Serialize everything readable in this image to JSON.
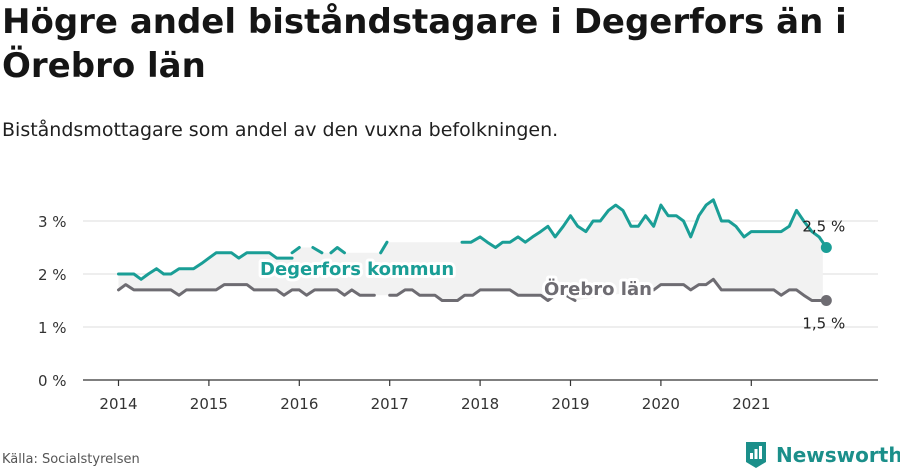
{
  "title": "Högre andel biståndstagare i Degerfors än i Örebro län",
  "subtitle": "Biståndsmottagare som andel av den vuxna befolkningen.",
  "source": "Källa: Socialstyrelsen",
  "brand": {
    "name": "Newsworthy",
    "icon": "newsworthy-logo-icon"
  },
  "colors": {
    "teal": "#1a9e96",
    "gray": "#6e6c72",
    "band": "#f2f2f2",
    "grid": "#dddddd",
    "axis": "#333333"
  },
  "chart_data": {
    "type": "line",
    "ylim": [
      0,
      3.4
    ],
    "xlim": [
      2013.6,
      2022.4
    ],
    "yticks": [
      {
        "value": 0,
        "label": "0 %"
      },
      {
        "value": 1,
        "label": "1 %"
      },
      {
        "value": 2,
        "label": "2 %"
      },
      {
        "value": 3,
        "label": "3 %"
      }
    ],
    "xticks": [
      "2014",
      "2015",
      "2016",
      "2017",
      "2018",
      "2019",
      "2020",
      "2021"
    ],
    "grid": true,
    "series": [
      {
        "name": "Degerfors kommun",
        "color": "#1a9e96",
        "end_label": "2,5 %",
        "segments": [
          [
            [
              2014.0,
              2.0
            ],
            [
              2014.08,
              2.0
            ],
            [
              2014.17,
              2.0
            ],
            [
              2014.25,
              1.9
            ],
            [
              2014.33,
              2.0
            ],
            [
              2014.42,
              2.1
            ],
            [
              2014.5,
              2.0
            ],
            [
              2014.58,
              2.0
            ],
            [
              2014.67,
              2.1
            ],
            [
              2014.75,
              2.1
            ],
            [
              2014.83,
              2.1
            ],
            [
              2014.92,
              2.2
            ],
            [
              2015.0,
              2.3
            ],
            [
              2015.08,
              2.4
            ],
            [
              2015.17,
              2.4
            ],
            [
              2015.25,
              2.4
            ],
            [
              2015.33,
              2.3
            ],
            [
              2015.42,
              2.4
            ],
            [
              2015.5,
              2.4
            ],
            [
              2015.58,
              2.4
            ],
            [
              2015.67,
              2.4
            ],
            [
              2015.75,
              2.3
            ],
            [
              2015.83,
              2.3
            ],
            [
              2015.92,
              2.3
            ]
          ],
          [
            [
              2015.92,
              2.4
            ],
            [
              2016.0,
              2.5
            ]
          ],
          [
            [
              2016.15,
              2.5
            ],
            [
              2016.25,
              2.4
            ]
          ],
          [
            [
              2016.35,
              2.4
            ],
            [
              2016.42,
              2.5
            ],
            [
              2016.5,
              2.4
            ]
          ],
          [
            [
              2016.9,
              2.4
            ],
            [
              2016.97,
              2.6
            ]
          ],
          [
            [
              2017.8,
              2.6
            ],
            [
              2017.9,
              2.6
            ],
            [
              2018.0,
              2.7
            ],
            [
              2018.08,
              2.6
            ],
            [
              2018.17,
              2.5
            ],
            [
              2018.25,
              2.6
            ],
            [
              2018.33,
              2.6
            ],
            [
              2018.42,
              2.7
            ],
            [
              2018.5,
              2.6
            ],
            [
              2018.58,
              2.7
            ],
            [
              2018.67,
              2.8
            ],
            [
              2018.75,
              2.9
            ],
            [
              2018.83,
              2.7
            ],
            [
              2018.92,
              2.9
            ],
            [
              2019.0,
              3.1
            ],
            [
              2019.08,
              2.9
            ],
            [
              2019.17,
              2.8
            ],
            [
              2019.25,
              3.0
            ],
            [
              2019.33,
              3.0
            ],
            [
              2019.42,
              3.2
            ],
            [
              2019.5,
              3.3
            ],
            [
              2019.58,
              3.2
            ],
            [
              2019.67,
              2.9
            ],
            [
              2019.75,
              2.9
            ],
            [
              2019.83,
              3.1
            ],
            [
              2019.92,
              2.9
            ],
            [
              2020.0,
              3.3
            ],
            [
              2020.08,
              3.1
            ],
            [
              2020.17,
              3.1
            ],
            [
              2020.25,
              3.0
            ],
            [
              2020.33,
              2.7
            ],
            [
              2020.42,
              3.1
            ],
            [
              2020.5,
              3.3
            ],
            [
              2020.58,
              3.4
            ],
            [
              2020.67,
              3.0
            ],
            [
              2020.75,
              3.0
            ],
            [
              2020.83,
              2.9
            ],
            [
              2020.92,
              2.7
            ],
            [
              2021.0,
              2.8
            ],
            [
              2021.08,
              2.8
            ],
            [
              2021.17,
              2.8
            ],
            [
              2021.25,
              2.8
            ],
            [
              2021.33,
              2.8
            ],
            [
              2021.42,
              2.9
            ],
            [
              2021.5,
              3.2
            ],
            [
              2021.58,
              3.0
            ],
            [
              2021.67,
              2.8
            ],
            [
              2021.75,
              2.7
            ],
            [
              2021.83,
              2.5
            ]
          ]
        ]
      },
      {
        "name": "Örebro län",
        "color": "#6e6c72",
        "end_label": "1,5 %",
        "segments": [
          [
            [
              2014.0,
              1.7
            ],
            [
              2014.08,
              1.8
            ],
            [
              2014.17,
              1.7
            ],
            [
              2014.25,
              1.7
            ],
            [
              2014.33,
              1.7
            ],
            [
              2014.42,
              1.7
            ],
            [
              2014.5,
              1.7
            ],
            [
              2014.58,
              1.7
            ],
            [
              2014.67,
              1.6
            ],
            [
              2014.75,
              1.7
            ],
            [
              2014.83,
              1.7
            ],
            [
              2014.92,
              1.7
            ],
            [
              2015.0,
              1.7
            ],
            [
              2015.08,
              1.7
            ],
            [
              2015.17,
              1.8
            ],
            [
              2015.25,
              1.8
            ],
            [
              2015.33,
              1.8
            ],
            [
              2015.42,
              1.8
            ],
            [
              2015.5,
              1.7
            ],
            [
              2015.58,
              1.7
            ],
            [
              2015.67,
              1.7
            ],
            [
              2015.75,
              1.7
            ],
            [
              2015.83,
              1.6
            ],
            [
              2015.92,
              1.7
            ],
            [
              2016.0,
              1.7
            ],
            [
              2016.08,
              1.6
            ],
            [
              2016.17,
              1.7
            ],
            [
              2016.25,
              1.7
            ],
            [
              2016.33,
              1.7
            ],
            [
              2016.42,
              1.7
            ],
            [
              2016.5,
              1.6
            ],
            [
              2016.58,
              1.7
            ],
            [
              2016.67,
              1.6
            ],
            [
              2016.75,
              1.6
            ],
            [
              2016.83,
              1.6
            ]
          ],
          [
            [
              2017.0,
              1.6
            ],
            [
              2017.08,
              1.6
            ],
            [
              2017.17,
              1.7
            ],
            [
              2017.25,
              1.7
            ],
            [
              2017.33,
              1.6
            ],
            [
              2017.42,
              1.6
            ],
            [
              2017.5,
              1.6
            ],
            [
              2017.58,
              1.5
            ],
            [
              2017.67,
              1.5
            ],
            [
              2017.75,
              1.5
            ],
            [
              2017.83,
              1.6
            ],
            [
              2017.92,
              1.6
            ],
            [
              2018.0,
              1.7
            ],
            [
              2018.08,
              1.7
            ],
            [
              2018.17,
              1.7
            ],
            [
              2018.25,
              1.7
            ],
            [
              2018.33,
              1.7
            ],
            [
              2018.42,
              1.6
            ],
            [
              2018.5,
              1.6
            ],
            [
              2018.58,
              1.6
            ],
            [
              2018.67,
              1.6
            ],
            [
              2018.75,
              1.5
            ],
            [
              2018.83,
              1.6
            ]
          ],
          [
            [
              2018.95,
              1.6
            ],
            [
              2019.05,
              1.5
            ]
          ],
          [
            [
              2019.85,
              1.7
            ],
            [
              2019.92,
              1.7
            ],
            [
              2020.0,
              1.8
            ],
            [
              2020.08,
              1.8
            ],
            [
              2020.17,
              1.8
            ],
            [
              2020.25,
              1.8
            ],
            [
              2020.33,
              1.7
            ],
            [
              2020.42,
              1.8
            ],
            [
              2020.5,
              1.8
            ],
            [
              2020.58,
              1.9
            ],
            [
              2020.67,
              1.7
            ],
            [
              2020.75,
              1.7
            ],
            [
              2020.83,
              1.7
            ],
            [
              2020.92,
              1.7
            ],
            [
              2021.0,
              1.7
            ],
            [
              2021.08,
              1.7
            ],
            [
              2021.17,
              1.7
            ],
            [
              2021.25,
              1.7
            ],
            [
              2021.33,
              1.6
            ],
            [
              2021.42,
              1.7
            ],
            [
              2021.5,
              1.7
            ],
            [
              2021.58,
              1.6
            ],
            [
              2021.67,
              1.5
            ],
            [
              2021.75,
              1.5
            ],
            [
              2021.83,
              1.5
            ]
          ]
        ]
      }
    ]
  }
}
